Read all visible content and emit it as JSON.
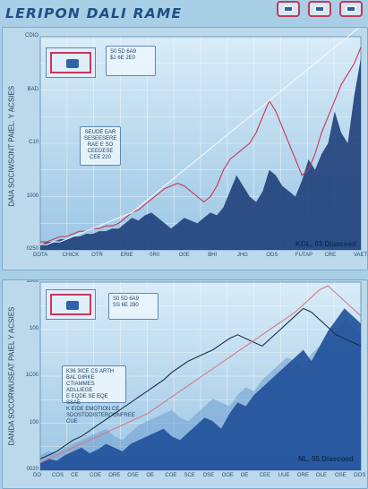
{
  "app": {
    "title": "LERIPON DALI RAME",
    "top_icons": [
      "red-frame-icon",
      "red-frame-icon",
      "red-frame-icon"
    ]
  },
  "panel1": {
    "ylabel": "DAIA SOCIWSONT PAIEL. Y ACSIES",
    "yticks": [
      "CDIO",
      "BAD",
      "C10",
      "1000",
      "0250"
    ],
    "xticks": [
      "DOTA",
      "CHICK",
      "OTR",
      "ERIE",
      "0R0",
      "O0E",
      "BHI",
      "JHG",
      "ODS",
      "FUTAP",
      "CRE",
      "VAET"
    ],
    "card1": "S0 5D 6A9\n$2 6E 2E0",
    "card2": "SEUDE EAR\nSESEESERE\nRAE E SO\nCEEDESE\nCEE 220",
    "note": "KGL, 03 Diascoed",
    "colors": {
      "fill": "#1f3f7a",
      "red": "#c8375a",
      "white": "#f4f8fb"
    },
    "chart_data": {
      "type": "area",
      "x": [
        0,
        1,
        2,
        3,
        4,
        5,
        6,
        7,
        8,
        9,
        10,
        11,
        12,
        13,
        14,
        15,
        16,
        17,
        18,
        19,
        20,
        21,
        22,
        23,
        24,
        25,
        26,
        27,
        28,
        29,
        30,
        31,
        32,
        33,
        34,
        35,
        36,
        37,
        38,
        39,
        40,
        41,
        42,
        43,
        44,
        45,
        46,
        47,
        48,
        49
      ],
      "series": [
        {
          "name": "",
          "role": "fill",
          "values": [
            2,
            3,
            3,
            4,
            4,
            5,
            5,
            6,
            6,
            7,
            7,
            8,
            8,
            10,
            12,
            11,
            13,
            14,
            12,
            10,
            8,
            10,
            12,
            11,
            10,
            12,
            14,
            13,
            16,
            22,
            28,
            24,
            20,
            18,
            22,
            30,
            28,
            24,
            22,
            20,
            26,
            34,
            30,
            36,
            40,
            52,
            44,
            40,
            58,
            72
          ]
        },
        {
          "name": "",
          "role": "red-line",
          "values": [
            3,
            3,
            4,
            5,
            5,
            6,
            7,
            7,
            8,
            8,
            9,
            9,
            10,
            12,
            14,
            15,
            17,
            19,
            21,
            23,
            24,
            25,
            24,
            22,
            20,
            18,
            20,
            24,
            30,
            34,
            36,
            38,
            40,
            44,
            50,
            56,
            52,
            46,
            40,
            34,
            28,
            30,
            36,
            44,
            50,
            56,
            62,
            66,
            70,
            76
          ]
        },
        {
          "name": "",
          "role": "white-line",
          "values": [
            2,
            2,
            3,
            3,
            4,
            5,
            6,
            7,
            8,
            9,
            10,
            11,
            12,
            13,
            14,
            16,
            18,
            20,
            22,
            24,
            26,
            28,
            30,
            32,
            34,
            36,
            38,
            40,
            42,
            44,
            46,
            48,
            50,
            52,
            54,
            56,
            58,
            60,
            62,
            64,
            66,
            68,
            70,
            72,
            74,
            76,
            78,
            80,
            82,
            84
          ]
        }
      ]
    }
  },
  "panel2": {
    "ylabel": "DANDA SOCORWUSEAT PAIEL Y ACSIES",
    "yticks": [
      "1000",
      "100",
      "1C00",
      "100",
      "0020"
    ],
    "xticks": [
      "DO",
      "COS",
      "CE",
      "COE",
      "ORE",
      "OSE",
      "OE",
      "COE",
      "SCE",
      "OSE",
      "OOE",
      "OE",
      "CEE",
      "UUE",
      "ORE",
      "OLE",
      "OSE",
      "OOS"
    ],
    "card1": "S0 5D 6A9\nSS 6E 280",
    "card2": "K36 3ICE CS ARTH BAL GIRKE\nCTIAMMES ADLLIEGE\nE EQDE SE EQE SSAE\nK EIDE EMOTION CE\nSDOSTODISTEROONFREE CUE",
    "note": "NL, 55 Diascoed",
    "colors": {
      "fill_dark": "#1f4f99",
      "fill_light": "#6f9fd0",
      "black": "#1b2f4d",
      "red": "#d47a8a"
    },
    "chart_data": {
      "type": "area",
      "x": [
        0,
        1,
        2,
        3,
        4,
        5,
        6,
        7,
        8,
        9,
        10,
        11,
        12,
        13,
        14,
        15,
        16,
        17,
        18,
        19,
        20,
        21,
        22,
        23,
        24,
        25,
        26,
        27,
        28,
        29,
        30,
        31,
        32,
        33,
        34,
        35,
        36,
        37,
        38,
        39
      ],
      "series": [
        {
          "name": "",
          "role": "fill-light",
          "values": [
            8,
            10,
            9,
            12,
            14,
            16,
            18,
            20,
            22,
            18,
            16,
            20,
            24,
            26,
            28,
            30,
            32,
            28,
            26,
            30,
            34,
            38,
            36,
            34,
            40,
            44,
            42,
            48,
            52,
            56,
            60,
            58,
            54,
            62,
            66,
            70,
            74,
            80,
            76,
            72
          ]
        },
        {
          "name": "",
          "role": "fill-dark",
          "values": [
            4,
            6,
            5,
            8,
            10,
            12,
            9,
            11,
            14,
            12,
            10,
            14,
            16,
            18,
            20,
            22,
            18,
            16,
            20,
            24,
            28,
            26,
            22,
            30,
            36,
            34,
            40,
            44,
            48,
            52,
            56,
            60,
            64,
            58,
            66,
            74,
            80,
            86,
            82,
            78
          ]
        },
        {
          "name": "",
          "role": "black-line",
          "values": [
            6,
            8,
            10,
            13,
            16,
            18,
            21,
            24,
            27,
            30,
            33,
            36,
            39,
            42,
            45,
            48,
            52,
            55,
            58,
            60,
            62,
            64,
            67,
            70,
            72,
            70,
            68,
            66,
            70,
            74,
            78,
            82,
            86,
            84,
            80,
            76,
            72,
            70,
            68,
            66
          ]
        },
        {
          "name": "",
          "role": "red-line",
          "values": [
            4,
            6,
            8,
            10,
            12,
            14,
            16,
            18,
            20,
            22,
            24,
            26,
            28,
            30,
            33,
            36,
            39,
            42,
            45,
            48,
            51,
            54,
            57,
            60,
            63,
            66,
            69,
            72,
            75,
            78,
            81,
            84,
            88,
            92,
            96,
            98,
            94,
            90,
            86,
            82
          ]
        }
      ]
    }
  }
}
